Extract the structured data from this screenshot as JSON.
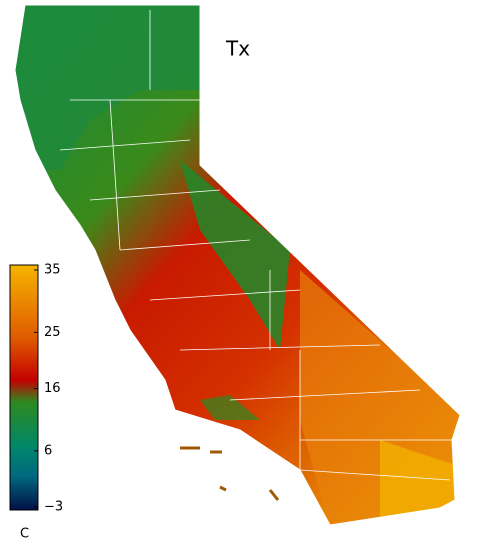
{
  "title": "Tx",
  "colorbar": {
    "unit": "C",
    "lim": [
      -3,
      35
    ],
    "ticks": [
      35,
      25,
      16,
      6,
      {
        "value": -3,
        "label": "−3"
      }
    ]
  }
}
